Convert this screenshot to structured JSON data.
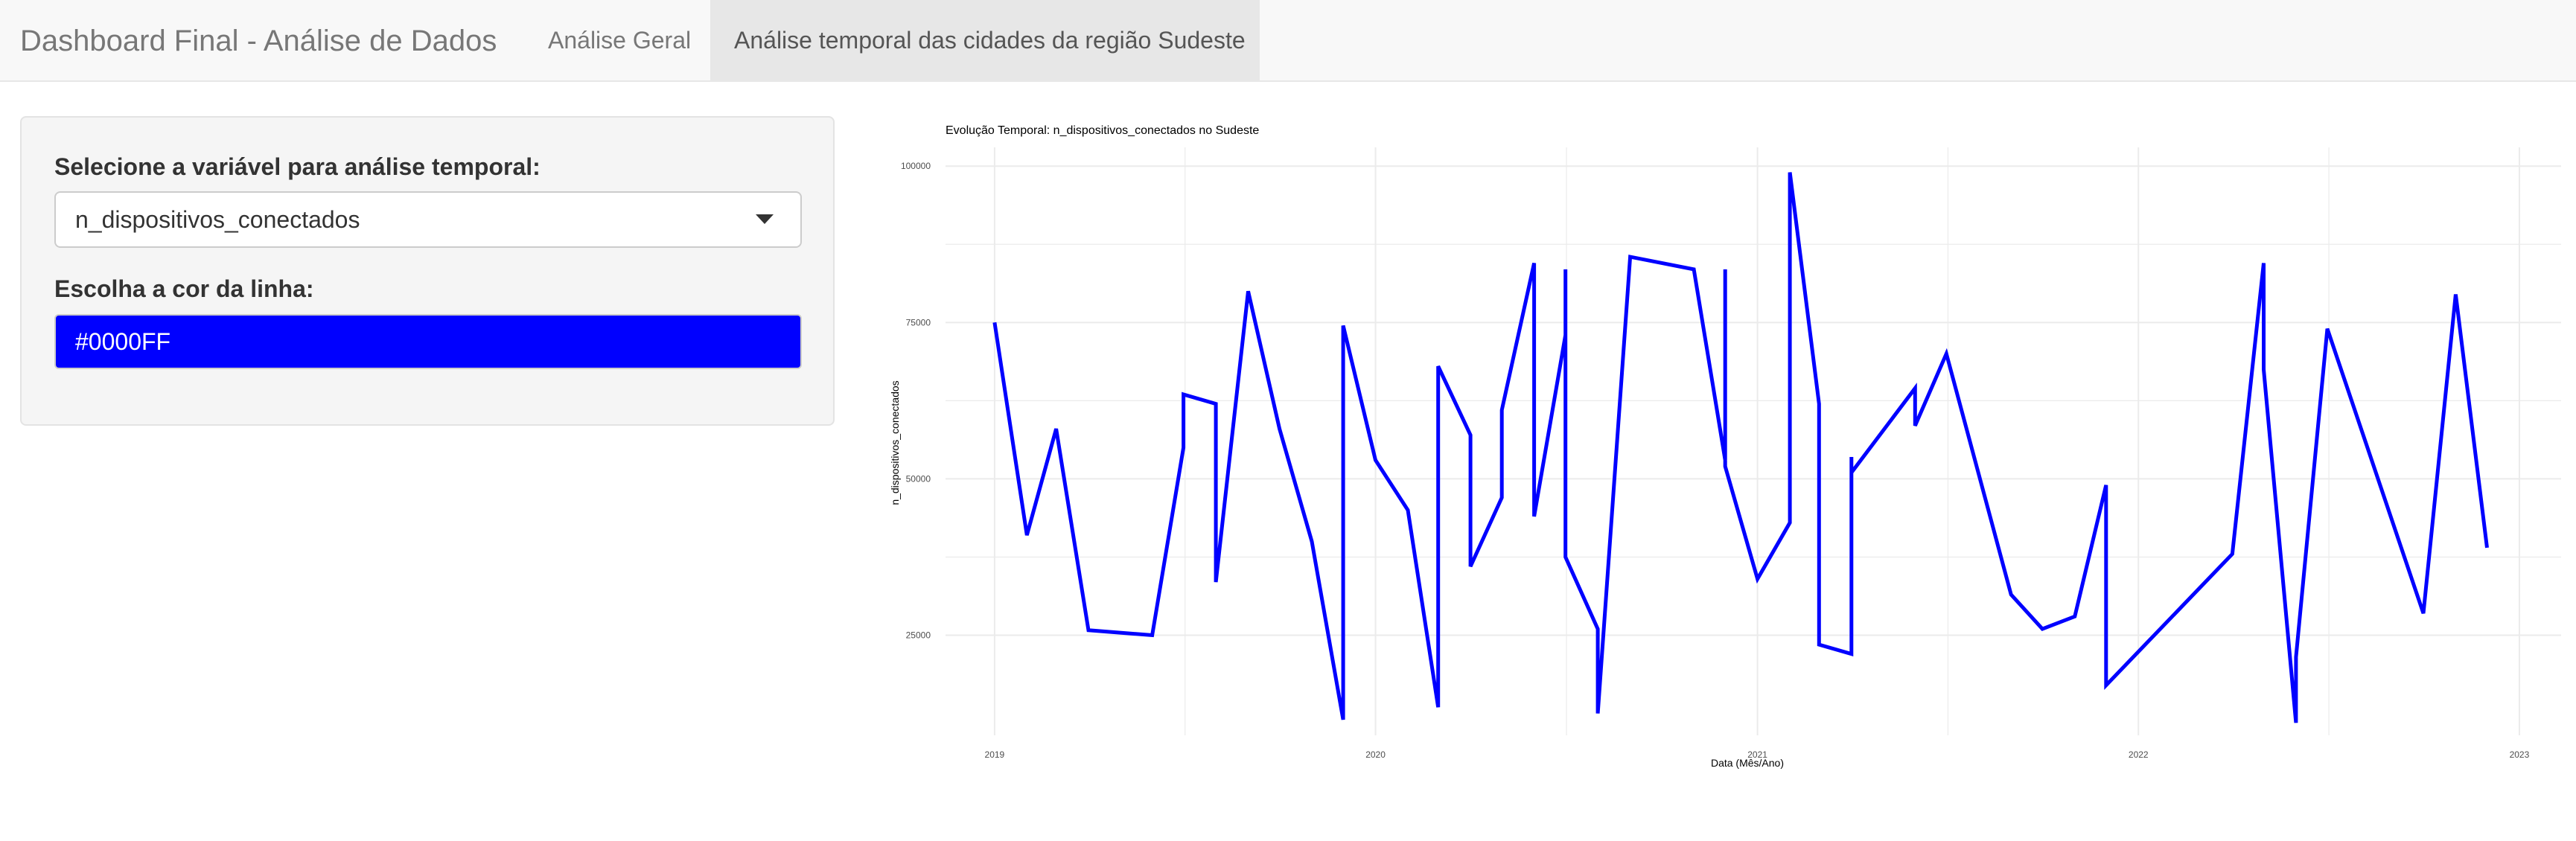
{
  "navbar": {
    "brand": "Dashboard Final - Análise de Dados",
    "tabs": [
      {
        "label": "Análise Geral",
        "active": false
      },
      {
        "label": "Análise temporal das cidades da região Sudeste",
        "active": true
      }
    ]
  },
  "sidebar": {
    "variable_label": "Selecione a variável para análise temporal:",
    "variable_selected": "n_dispositivos_conectados",
    "color_label": "Escolha a cor da linha:",
    "color_value": "#0000FF"
  },
  "colors": {
    "line": "#0000FF",
    "navbar_bg": "#f8f8f8",
    "active_tab_bg": "#e7e7e7",
    "grid": "#ebebeb"
  },
  "icons": {
    "select_caret": "chevron-down-icon"
  },
  "chart_data": {
    "type": "line",
    "title": "Evolução Temporal: n_dispositivos_conectados no Sudeste",
    "xlabel": "Data (Mês/Ano)",
    "ylabel": "n_dispositivos_conectados",
    "x_type": "date",
    "xlim": [
      "2018-11-15",
      "2023-02-10"
    ],
    "ylim": [
      9000,
      103000
    ],
    "x_ticks": [
      {
        "date": "2019-01-01",
        "label": "2019"
      },
      {
        "date": "2020-01-01",
        "label": "2020"
      },
      {
        "date": "2021-01-01",
        "label": "2021"
      },
      {
        "date": "2022-01-01",
        "label": "2022"
      },
      {
        "date": "2023-01-01",
        "label": "2023"
      }
    ],
    "y_ticks": [
      25000,
      50000,
      75000,
      100000
    ],
    "y_tick_labels": [
      "25000",
      "50000",
      "75000",
      "100000"
    ],
    "grid": true,
    "series": [
      {
        "color": "#0000FF",
        "points": [
          [
            "2019-01-01",
            75000
          ],
          [
            "2019-02-01",
            41000
          ],
          [
            "2019-03-01",
            58000
          ],
          [
            "2019-04-01",
            25800
          ],
          [
            "2019-06-01",
            25000
          ],
          [
            "2019-07-01",
            55000
          ],
          [
            "2019-07-01",
            63500
          ],
          [
            "2019-08-01",
            62000
          ],
          [
            "2019-08-01",
            33500
          ],
          [
            "2019-09-01",
            80000
          ],
          [
            "2019-10-01",
            58000
          ],
          [
            "2019-11-01",
            40000
          ],
          [
            "2019-12-01",
            11500
          ],
          [
            "2019-12-01",
            74500
          ],
          [
            "2020-01-01",
            53000
          ],
          [
            "2020-02-01",
            45000
          ],
          [
            "2020-03-01",
            13500
          ],
          [
            "2020-03-01",
            68000
          ],
          [
            "2020-04-01",
            57000
          ],
          [
            "2020-04-01",
            36000
          ],
          [
            "2020-05-01",
            47000
          ],
          [
            "2020-05-01",
            61000
          ],
          [
            "2020-06-01",
            84500
          ],
          [
            "2020-06-01",
            44000
          ],
          [
            "2020-07-01",
            73000
          ],
          [
            "2020-07-01",
            83500
          ],
          [
            "2020-07-01",
            37500
          ],
          [
            "2020-08-01",
            26000
          ],
          [
            "2020-08-01",
            12500
          ],
          [
            "2020-09-01",
            85500
          ],
          [
            "2020-11-01",
            83500
          ],
          [
            "2020-12-01",
            53000
          ],
          [
            "2020-12-01",
            83500
          ],
          [
            "2020-12-01",
            52000
          ],
          [
            "2021-01-01",
            34000
          ],
          [
            "2021-02-01",
            43000
          ],
          [
            "2021-02-01",
            99000
          ],
          [
            "2021-03-01",
            62000
          ],
          [
            "2021-03-01",
            23500
          ],
          [
            "2021-04-01",
            22000
          ],
          [
            "2021-04-01",
            53500
          ],
          [
            "2021-04-01",
            51000
          ],
          [
            "2021-06-01",
            64500
          ],
          [
            "2021-06-01",
            58500
          ],
          [
            "2021-07-01",
            70000
          ],
          [
            "2021-09-01",
            31500
          ],
          [
            "2021-10-01",
            26000
          ],
          [
            "2021-11-01",
            28000
          ],
          [
            "2021-12-01",
            49000
          ],
          [
            "2021-12-01",
            17000
          ],
          [
            "2022-04-01",
            38000
          ],
          [
            "2022-05-01",
            84500
          ],
          [
            "2022-05-01",
            67500
          ],
          [
            "2022-06-01",
            11000
          ],
          [
            "2022-06-01",
            21500
          ],
          [
            "2022-07-01",
            74000
          ],
          [
            "2022-10-01",
            28500
          ],
          [
            "2022-11-01",
            79500
          ],
          [
            "2022-12-01",
            39000
          ]
        ]
      }
    ]
  }
}
